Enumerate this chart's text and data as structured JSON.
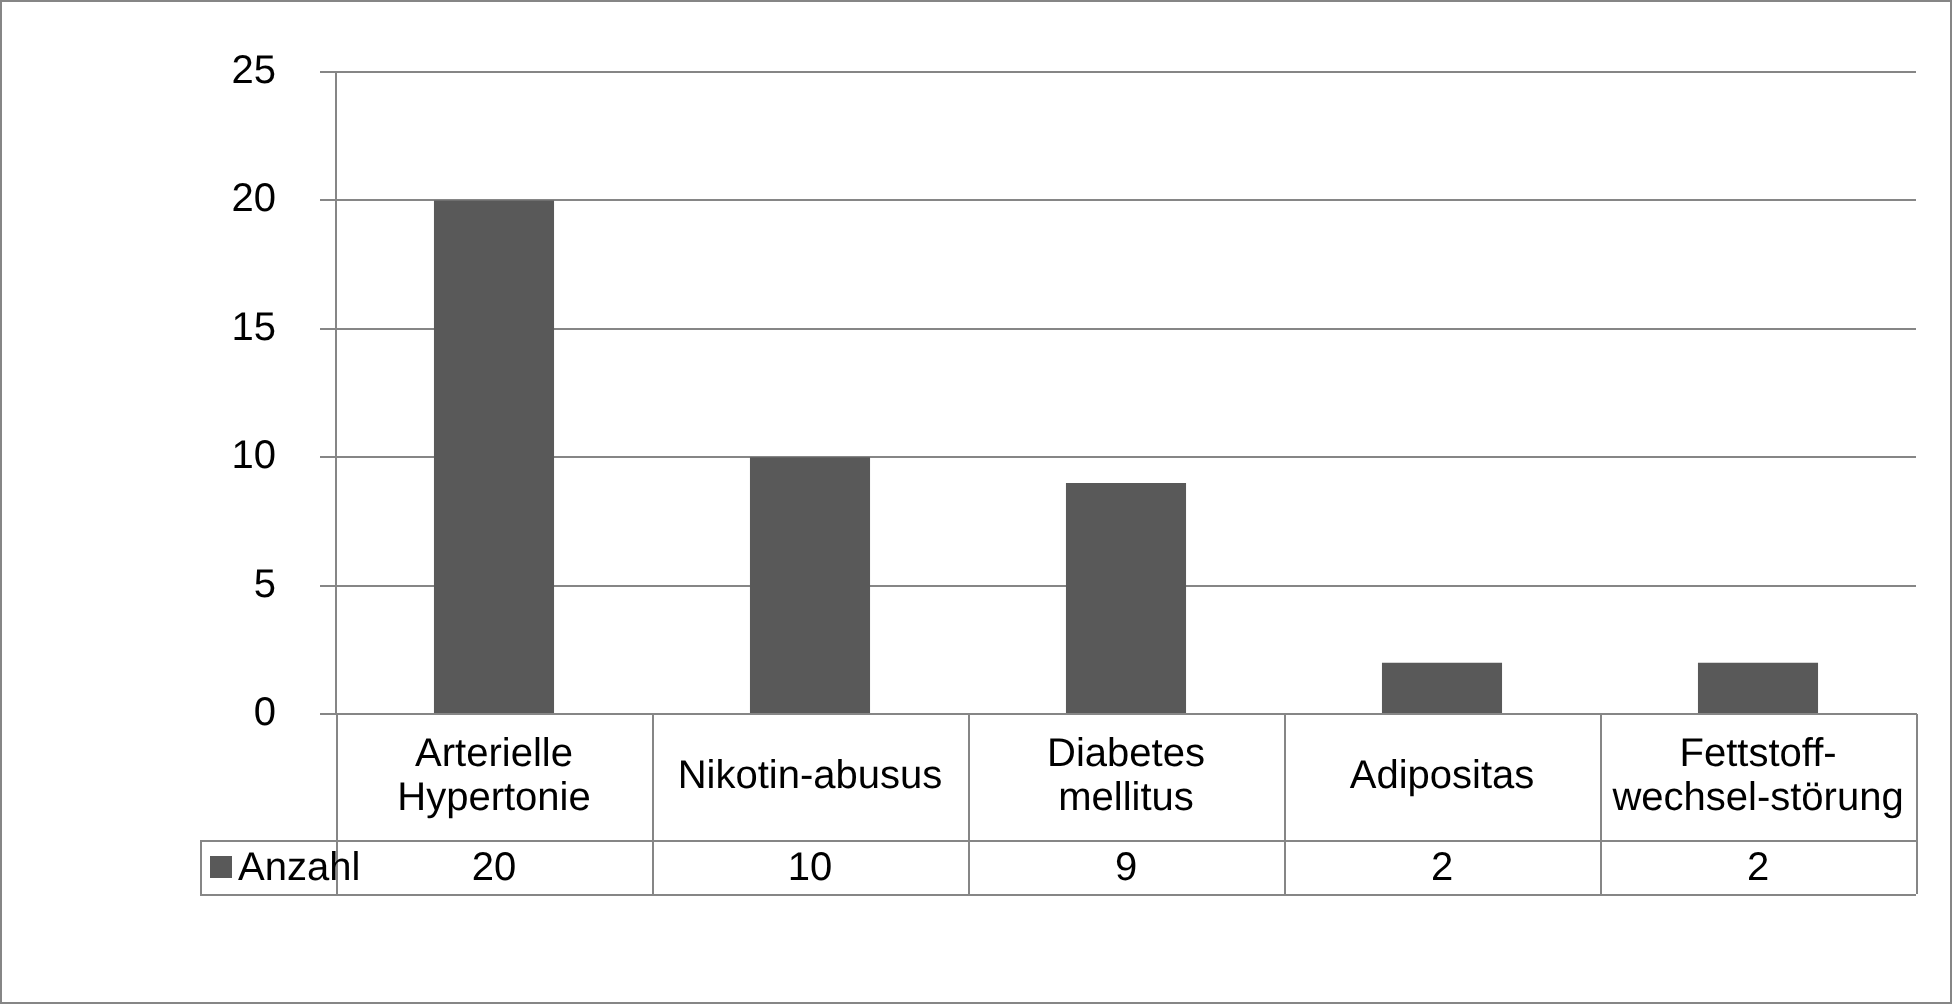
{
  "chart_data": {
    "type": "bar",
    "categories": [
      "Arterielle Hypertonie",
      "Nikotin-abusus",
      "Diabetes mellitus",
      "Adipositas",
      "Fettstoff-wechsel-störung"
    ],
    "series": [
      {
        "name": "Anzahl",
        "color": "#595959",
        "values": [
          20,
          10,
          9,
          2,
          2
        ]
      }
    ],
    "ylim": [
      0,
      25
    ],
    "yticks": [
      0,
      5,
      10,
      15,
      20,
      25
    ],
    "grid": "y",
    "legend": "bottom left",
    "data_labels": true
  }
}
